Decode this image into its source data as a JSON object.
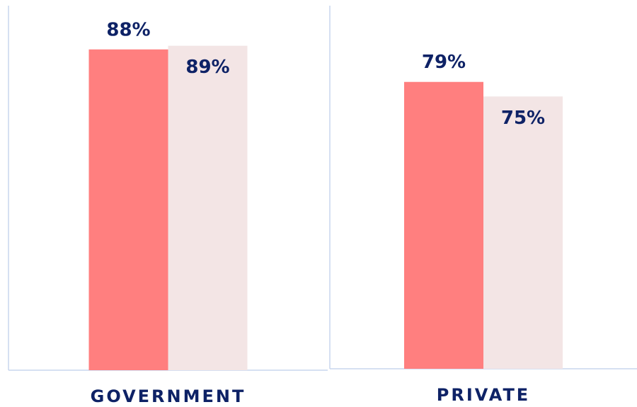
{
  "chart_data": {
    "type": "bar",
    "categories": [
      "GOVERNMENT",
      "PRIVATE"
    ],
    "series": [
      {
        "color": "#ff7f7f",
        "values": [
          88,
          79
        ],
        "value_labels": [
          "88%",
          "79%"
        ]
      },
      {
        "color": "#f3e5e5",
        "values": [
          89,
          75
        ],
        "value_labels": [
          "89%",
          "75%"
        ]
      }
    ],
    "ylim": [
      0,
      100
    ]
  }
}
